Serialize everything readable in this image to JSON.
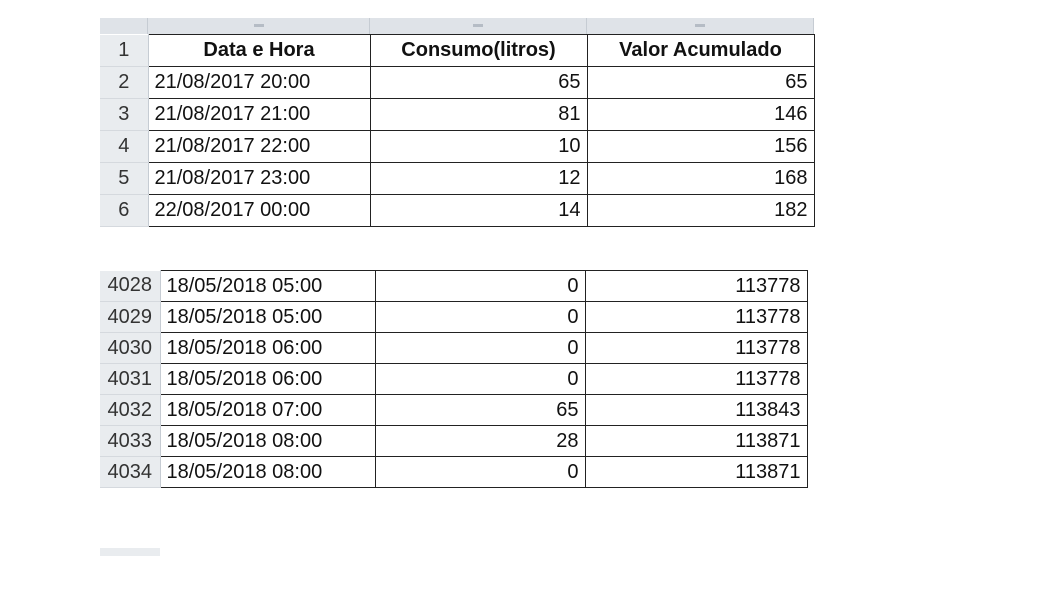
{
  "header": {
    "row_number": "1",
    "columns": [
      "Data e Hora",
      "Consumo(litros)",
      "Valor Acumulado"
    ]
  },
  "top_rows": [
    {
      "row": "2",
      "date": "21/08/2017 20:00",
      "consumo": "65",
      "acumulado": "65"
    },
    {
      "row": "3",
      "date": "21/08/2017 21:00",
      "consumo": "81",
      "acumulado": "146"
    },
    {
      "row": "4",
      "date": "21/08/2017 22:00",
      "consumo": "10",
      "acumulado": "156"
    },
    {
      "row": "5",
      "date": "21/08/2017 23:00",
      "consumo": "12",
      "acumulado": "168"
    },
    {
      "row": "6",
      "date": "22/08/2017 00:00",
      "consumo": "14",
      "acumulado": "182"
    }
  ],
  "bottom_rows": [
    {
      "row": "4028",
      "date": "18/05/2018 05:00",
      "consumo": "0",
      "acumulado": "113778"
    },
    {
      "row": "4029",
      "date": "18/05/2018 05:00",
      "consumo": "0",
      "acumulado": "113778"
    },
    {
      "row": "4030",
      "date": "18/05/2018 06:00",
      "consumo": "0",
      "acumulado": "113778"
    },
    {
      "row": "4031",
      "date": "18/05/2018 06:00",
      "consumo": "0",
      "acumulado": "113778"
    },
    {
      "row": "4032",
      "date": "18/05/2018 07:00",
      "consumo": "65",
      "acumulado": "113843"
    },
    {
      "row": "4033",
      "date": "18/05/2018 08:00",
      "consumo": "28",
      "acumulado": "113871"
    },
    {
      "row": "4034",
      "date": "18/05/2018 08:00",
      "consumo": "0",
      "acumulado": "113871"
    }
  ]
}
